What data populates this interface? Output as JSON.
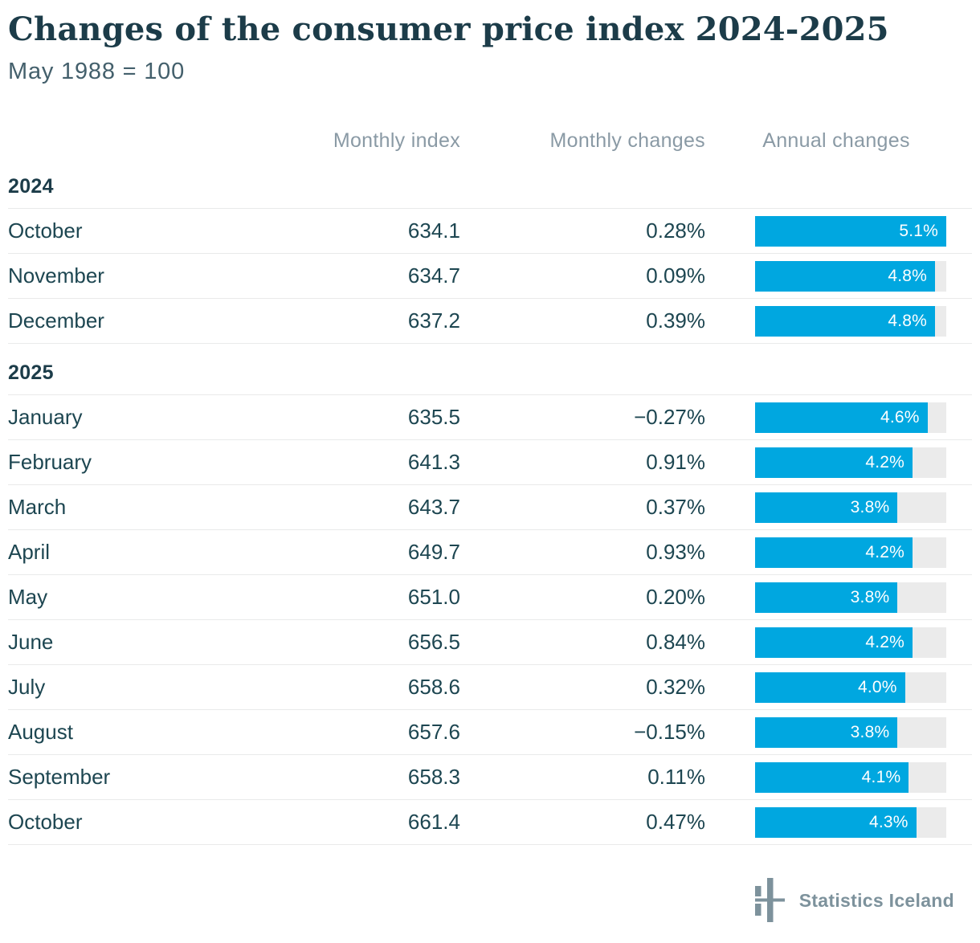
{
  "page": {
    "title": "Changes of the consumer price index 2024-2025",
    "subtitle": "May 1988 = 100"
  },
  "table": {
    "headers": {
      "index": "Monthly index",
      "monthly": "Monthly changes",
      "annual": "Annual changes"
    }
  },
  "footer": {
    "brand": "Statistics Iceland",
    "logo_icon": "statistics-iceland-logo"
  },
  "colors": {
    "accent_bar": "#00a7e0",
    "bar_track": "#ebebeb",
    "bar_label": "#ffffff",
    "title_text": "#1c3c49",
    "body_text": "#1d4651",
    "muted_header": "#8a9aa5",
    "divider": "#e9eaea",
    "logo_gray": "#7d929c"
  },
  "chart_data": {
    "type": "table",
    "title": "Changes of the consumer price index 2024-2025",
    "subtitle": "May 1988 = 100",
    "columns": [
      "",
      "Monthly index",
      "Monthly changes",
      "Annual changes"
    ],
    "bar_column": "Annual changes",
    "bar_type": "bar",
    "bar_axis_max": 5.1,
    "sections": [
      {
        "year": "2024",
        "rows": [
          {
            "month": "October",
            "index": "634.1",
            "monthly_change": "0.28%",
            "annual_label": "5.1%",
            "annual_value": 5.1
          },
          {
            "month": "November",
            "index": "634.7",
            "monthly_change": "0.09%",
            "annual_label": "4.8%",
            "annual_value": 4.8
          },
          {
            "month": "December",
            "index": "637.2",
            "monthly_change": "0.39%",
            "annual_label": "4.8%",
            "annual_value": 4.8
          }
        ]
      },
      {
        "year": "2025",
        "rows": [
          {
            "month": "January",
            "index": "635.5",
            "monthly_change": "−0.27%",
            "annual_label": "4.6%",
            "annual_value": 4.6
          },
          {
            "month": "February",
            "index": "641.3",
            "monthly_change": "0.91%",
            "annual_label": "4.2%",
            "annual_value": 4.2
          },
          {
            "month": "March",
            "index": "643.7",
            "monthly_change": "0.37%",
            "annual_label": "3.8%",
            "annual_value": 3.8
          },
          {
            "month": "April",
            "index": "649.7",
            "monthly_change": "0.93%",
            "annual_label": "4.2%",
            "annual_value": 4.2
          },
          {
            "month": "May",
            "index": "651.0",
            "monthly_change": "0.20%",
            "annual_label": "3.8%",
            "annual_value": 3.8
          },
          {
            "month": "June",
            "index": "656.5",
            "monthly_change": "0.84%",
            "annual_label": "4.2%",
            "annual_value": 4.2
          },
          {
            "month": "July",
            "index": "658.6",
            "monthly_change": "0.32%",
            "annual_label": "4.0%",
            "annual_value": 4.0
          },
          {
            "month": "August",
            "index": "657.6",
            "monthly_change": "−0.15%",
            "annual_label": "3.8%",
            "annual_value": 3.8
          },
          {
            "month": "September",
            "index": "658.3",
            "monthly_change": "0.11%",
            "annual_label": "4.1%",
            "annual_value": 4.1
          },
          {
            "month": "October",
            "index": "661.4",
            "monthly_change": "0.47%",
            "annual_label": "4.3%",
            "annual_value": 4.3
          }
        ]
      }
    ]
  }
}
